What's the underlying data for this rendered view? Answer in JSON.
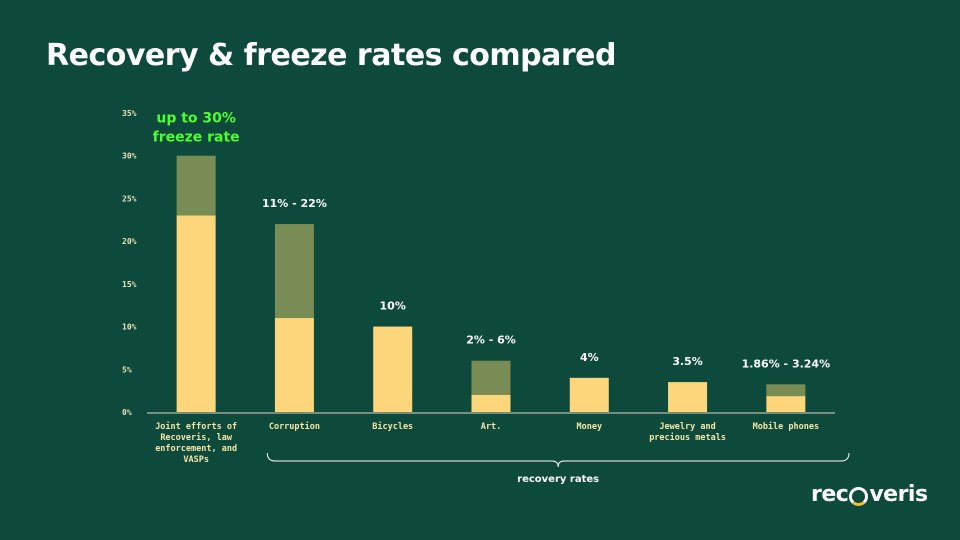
{
  "title": "Recovery & freeze rates compared",
  "logo": {
    "text_before": "rec",
    "text_after": "veris"
  },
  "chart_data": {
    "type": "bar",
    "stacked": true,
    "ylim": [
      0,
      35
    ],
    "yticks": [
      0,
      5,
      10,
      15,
      20,
      25,
      30,
      35
    ],
    "ytick_labels": [
      "0%",
      "5%",
      "10%",
      "15%",
      "20%",
      "25%",
      "30%",
      "35%"
    ],
    "categories": [
      [
        "Joint efforts of",
        "Recoveris, law",
        "enforcement, and",
        "VASPs"
      ],
      [
        "Corruption"
      ],
      [
        "Bicycles"
      ],
      [
        "Art."
      ],
      [
        "Money"
      ],
      [
        "Jewelry and",
        "precious metals"
      ],
      [
        "Mobile phones"
      ]
    ],
    "lower_values": [
      23,
      11,
      10,
      2,
      4,
      3.5,
      1.86
    ],
    "upper_values": [
      30,
      22,
      null,
      6,
      null,
      null,
      3.24
    ],
    "value_labels": [
      "up to 30%\nfreeze rate",
      "11% - 22%",
      "10%",
      "2% - 6%",
      "4%",
      "3.5%",
      "1.86% - 3.24%"
    ],
    "highlight_label_index": 0,
    "bracket_label": "recovery rates",
    "bracket_from": 1,
    "bracket_to": 6,
    "colors": {
      "lower": "#fdd57a",
      "upper": "#7a8c55",
      "highlight": "#4cff2e",
      "axis": "#d9d9c0"
    }
  }
}
